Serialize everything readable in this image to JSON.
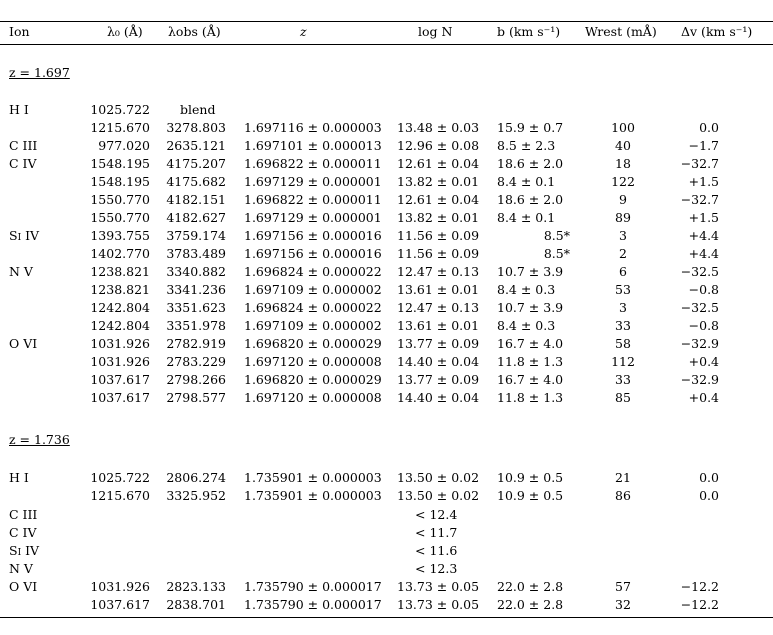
{
  "header": {
    "ion": "Ion",
    "lambda0": "λ₀ (Å)",
    "lambda_obs": "λobs (Å)",
    "z": "z",
    "logN": "log N",
    "b": "b (km s⁻¹)",
    "w_rest": "Wrest (mÅ)",
    "dv": "Δv (km s⁻¹)"
  },
  "sections": [
    {
      "title": "z = 1.697",
      "rows": [
        {
          "ion": "H I",
          "l0": "1025.722",
          "lobs": "blend",
          "z": "",
          "logN": "",
          "b": "",
          "w": "",
          "dv": ""
        },
        {
          "ion": "",
          "l0": "1215.670",
          "lobs": "3278.803",
          "z": "1.697116 ± 0.000003",
          "logN": "13.48 ± 0.03",
          "b": "15.9 ± 0.7",
          "w": "100",
          "dv": "0.0"
        },
        {
          "ion": "C III",
          "l0": "977.020",
          "lobs": "2635.121",
          "z": "1.697101 ± 0.000013",
          "logN": "12.96 ± 0.08",
          "b": "8.5 ± 2.3",
          "w": "40",
          "dv": "−1.7"
        },
        {
          "ion": "C IV",
          "l0": "1548.195",
          "lobs": "4175.207",
          "z": "1.696822 ± 0.000011",
          "logN": "12.61 ± 0.04",
          "b": "18.6 ± 2.0",
          "w": "18",
          "dv": "−32.7"
        },
        {
          "ion": "",
          "l0": "1548.195",
          "lobs": "4175.682",
          "z": "1.697129 ± 0.000001",
          "logN": "13.82 ± 0.01",
          "b": "8.4 ± 0.1",
          "w": "122",
          "dv": "+1.5"
        },
        {
          "ion": "",
          "l0": "1550.770",
          "lobs": "4182.151",
          "z": "1.696822 ± 0.000011",
          "logN": "12.61 ± 0.04",
          "b": "18.6 ± 2.0",
          "w": "9",
          "dv": "−32.7"
        },
        {
          "ion": "",
          "l0": "1550.770",
          "lobs": "4182.627",
          "z": "1.697129 ± 0.000001",
          "logN": "13.82 ± 0.01",
          "b": "8.4 ± 0.1",
          "w": "89",
          "dv": "+1.5"
        },
        {
          "ion": "Si IV",
          "l0": "1393.755",
          "lobs": "3759.174",
          "z": "1.697156 ± 0.000016",
          "logN": "11.56 ± 0.09",
          "b": "8.5*",
          "w": "3",
          "dv": "+4.4"
        },
        {
          "ion": "",
          "l0": "1402.770",
          "lobs": "3783.489",
          "z": "1.697156 ± 0.000016",
          "logN": "11.56 ± 0.09",
          "b": "8.5*",
          "w": "2",
          "dv": "+4.4"
        },
        {
          "ion": "N V",
          "l0": "1238.821",
          "lobs": "3340.882",
          "z": "1.696824 ± 0.000022",
          "logN": "12.47 ± 0.13",
          "b": "10.7 ± 3.9",
          "w": "6",
          "dv": "−32.5"
        },
        {
          "ion": "",
          "l0": "1238.821",
          "lobs": "3341.236",
          "z": "1.697109 ± 0.000002",
          "logN": "13.61 ± 0.01",
          "b": "8.4 ± 0.3",
          "w": "53",
          "dv": "−0.8"
        },
        {
          "ion": "",
          "l0": "1242.804",
          "lobs": "3351.623",
          "z": "1.696824 ± 0.000022",
          "logN": "12.47 ± 0.13",
          "b": "10.7 ± 3.9",
          "w": "3",
          "dv": "−32.5"
        },
        {
          "ion": "",
          "l0": "1242.804",
          "lobs": "3351.978",
          "z": "1.697109 ± 0.000002",
          "logN": "13.61 ± 0.01",
          "b": "8.4 ± 0.3",
          "w": "33",
          "dv": "−0.8"
        },
        {
          "ion": "O VI",
          "l0": "1031.926",
          "lobs": "2782.919",
          "z": "1.696820 ± 0.000029",
          "logN": "13.77 ± 0.09",
          "b": "16.7 ± 4.0",
          "w": "58",
          "dv": "−32.9"
        },
        {
          "ion": "",
          "l0": "1031.926",
          "lobs": "2783.229",
          "z": "1.697120 ± 0.000008",
          "logN": "14.40 ± 0.04",
          "b": "11.8 ± 1.3",
          "w": "112",
          "dv": "+0.4"
        },
        {
          "ion": "",
          "l0": "1037.617",
          "lobs": "2798.266",
          "z": "1.696820 ± 0.000029",
          "logN": "13.77 ± 0.09",
          "b": "16.7 ± 4.0",
          "w": "33",
          "dv": "−32.9"
        },
        {
          "ion": "",
          "l0": "1037.617",
          "lobs": "2798.577",
          "z": "1.697120 ± 0.000008",
          "logN": "14.40 ± 0.04",
          "b": "11.8 ± 1.3",
          "w": "85",
          "dv": "+0.4"
        }
      ]
    },
    {
      "title": "z = 1.736",
      "rows": [
        {
          "ion": "H I",
          "l0": "1025.722",
          "lobs": "2806.274",
          "z": "1.735901 ± 0.000003",
          "logN": "13.50 ± 0.02",
          "b": "10.9 ± 0.5",
          "w": "21",
          "dv": "0.0"
        },
        {
          "ion": "",
          "l0": "1215.670",
          "lobs": "3325.952",
          "z": "1.735901 ± 0.000003",
          "logN": "13.50 ± 0.02",
          "b": "10.9 ± 0.5",
          "w": "86",
          "dv": "0.0"
        },
        {
          "ion": "C III",
          "l0": "",
          "lobs": "",
          "z": "",
          "logN": "< 12.4",
          "b": "",
          "w": "",
          "dv": ""
        },
        {
          "ion": "C IV",
          "l0": "",
          "lobs": "",
          "z": "",
          "logN": "< 11.7",
          "b": "",
          "w": "",
          "dv": ""
        },
        {
          "ion": "Si IV",
          "l0": "",
          "lobs": "",
          "z": "",
          "logN": "< 11.6",
          "b": "",
          "w": "",
          "dv": ""
        },
        {
          "ion": "N V",
          "l0": "",
          "lobs": "",
          "z": "",
          "logN": "< 12.3",
          "b": "",
          "w": "",
          "dv": ""
        },
        {
          "ion": "O VI",
          "l0": "1031.926",
          "lobs": "2823.133",
          "z": "1.735790 ± 0.000017",
          "logN": "13.73 ± 0.05",
          "b": "22.0 ± 2.8",
          "w": "57",
          "dv": "−12.2"
        },
        {
          "ion": "",
          "l0": "1037.617",
          "lobs": "2838.701",
          "z": "1.735790 ± 0.000017",
          "logN": "13.73 ± 0.05",
          "b": "22.0 ± 2.8",
          "w": "32",
          "dv": "−12.2"
        }
      ]
    }
  ]
}
